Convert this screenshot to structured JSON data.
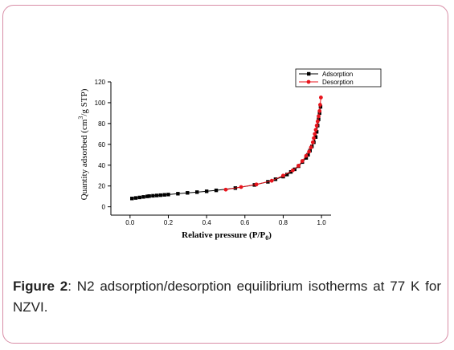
{
  "caption": {
    "label": "Figure 2",
    "text": ": N2 adsorption/desorption equilibrium isotherms at 77 K for NZVI."
  },
  "chart_data": {
    "type": "scatter",
    "xlabel": "Relative pressure (P/P0)",
    "ylabel": "Quantity adsorbed (cm3/g STP)",
    "xlim": [
      -0.1,
      1.05
    ],
    "ylim": [
      -8,
      120
    ],
    "xticks": [
      0.0,
      0.2,
      0.4,
      0.6,
      0.8,
      1.0
    ],
    "xtick_labels": [
      "0.0",
      "0.2",
      "0.4",
      "0.6",
      "0.8",
      "1.0"
    ],
    "yticks": [
      0,
      20,
      40,
      60,
      80,
      100,
      120
    ],
    "ytick_labels": [
      "0",
      "20",
      "40",
      "60",
      "80",
      "100",
      "120"
    ],
    "legend_position": "top-right",
    "series": [
      {
        "name": "Adsorption",
        "color": "#000000",
        "marker": "square",
        "x": [
          0.01,
          0.03,
          0.05,
          0.07,
          0.09,
          0.1,
          0.12,
          0.14,
          0.16,
          0.18,
          0.2,
          0.25,
          0.3,
          0.35,
          0.4,
          0.45,
          0.55,
          0.65,
          0.72,
          0.76,
          0.8,
          0.82,
          0.84,
          0.86,
          0.88,
          0.9,
          0.92,
          0.93,
          0.94,
          0.95,
          0.96,
          0.97,
          0.975,
          0.98,
          0.985,
          0.99,
          0.995
        ],
        "y": [
          8,
          8.5,
          9,
          9.5,
          10,
          10.3,
          10.6,
          10.9,
          11.2,
          11.5,
          11.8,
          12.6,
          13.4,
          14.1,
          14.9,
          15.8,
          18,
          21,
          24,
          26.5,
          29,
          31,
          33.5,
          36,
          39,
          43,
          47,
          50,
          54,
          58,
          62,
          67,
          72,
          78,
          84,
          90,
          96
        ]
      },
      {
        "name": "Desorption",
        "color": "#e8141c",
        "marker": "circle",
        "x": [
          0.5,
          0.58,
          0.66,
          0.74,
          0.8,
          0.85,
          0.88,
          0.9,
          0.92,
          0.935,
          0.945,
          0.955,
          0.96,
          0.965,
          0.97,
          0.975,
          0.98,
          0.985,
          0.99,
          0.993,
          0.997
        ],
        "y": [
          16.5,
          19,
          21.5,
          25,
          30,
          35,
          39.5,
          44,
          49,
          53,
          57,
          62,
          66,
          70,
          74,
          78,
          82,
          87,
          92,
          98,
          105
        ]
      }
    ]
  }
}
